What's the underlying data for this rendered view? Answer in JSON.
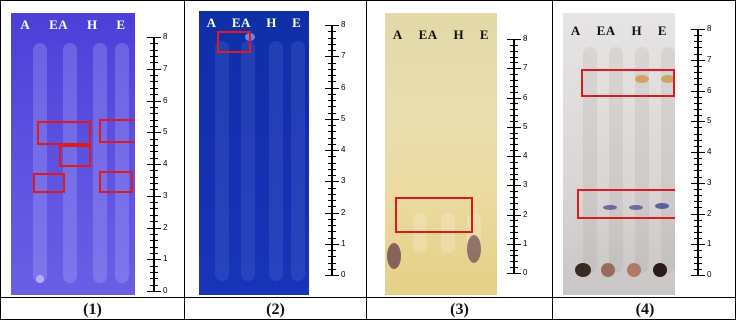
{
  "panels": [
    {
      "caption": "(1)",
      "lanes": [
        "A",
        "EA",
        "H",
        "E"
      ],
      "ruler_labels": [
        "8",
        "7",
        "6",
        "5",
        "4",
        "3",
        "2",
        "1",
        "0"
      ]
    },
    {
      "caption": "(2)",
      "lanes": [
        "A",
        "EA",
        "H",
        "E"
      ],
      "ruler_labels": [
        "8",
        "7",
        "6",
        "5",
        "4",
        "3",
        "2",
        "1",
        "0"
      ]
    },
    {
      "caption": "(3)",
      "lanes": [
        "A",
        "EA",
        "H",
        "E"
      ],
      "ruler_labels": [
        "8",
        "7",
        "6",
        "5",
        "4",
        "3",
        "2",
        "1",
        "0"
      ]
    },
    {
      "caption": "(4)",
      "lanes": [
        "A",
        "EA",
        "H",
        "E"
      ],
      "ruler_labels": [
        "8",
        "7",
        "6",
        "5",
        "4",
        "3",
        "2",
        "1",
        "0"
      ]
    }
  ],
  "colors": {
    "highlight_box": "#e01a1a",
    "plate1_bg": "#5a4ee0",
    "plate2_bg": "#142fb0",
    "plate3_bg": "#e8deb0",
    "plate4_bg": "#d9d6d5"
  }
}
